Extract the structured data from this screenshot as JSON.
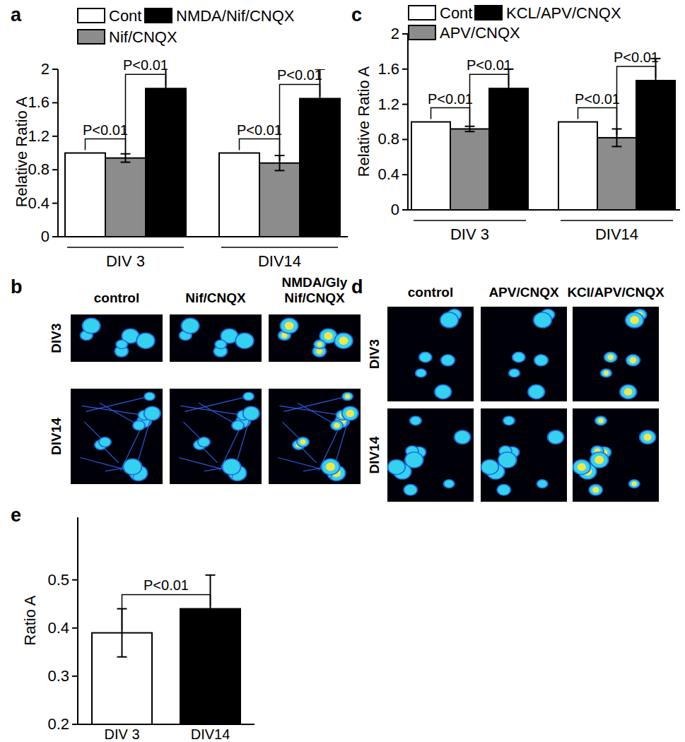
{
  "chart_data": [
    {
      "type": "bar",
      "title": "a",
      "y_label": "Relative Ratio A",
      "categories": [
        "DIV 3",
        "DIV14"
      ],
      "series": [
        {
          "name": "Cont",
          "color": "#ffffff",
          "values": [
            1,
            1
          ]
        },
        {
          "name": "Nif/CNQX",
          "color": "#8c8c8c",
          "values": [
            0.94,
            0.88
          ],
          "errors": [
            0.05,
            0.09
          ]
        },
        {
          "name": "NMDA/Nif/CNQX",
          "color": "#000000",
          "values": [
            1.77,
            1.65
          ],
          "errors": [
            0.26,
            0.35
          ]
        }
      ],
      "ylim": [
        0,
        2
      ],
      "yticks": [
        0,
        0.4,
        0.8,
        1.2,
        1.6,
        2
      ],
      "legend": "top",
      "annotations": [
        {
          "text": "P<0.01",
          "category": "DIV 3",
          "between": [
            "Cont",
            "Nif/CNQX"
          ]
        },
        {
          "text": "P<0.01",
          "category": "DIV 3",
          "between": [
            "Nif/CNQX",
            "NMDA/Nif/CNQX"
          ]
        },
        {
          "text": "P<0.01",
          "category": "DIV14",
          "between": [
            "Cont",
            "Nif/CNQX"
          ]
        },
        {
          "text": "P<0.01",
          "category": "DIV14",
          "between": [
            "Nif/CNQX",
            "NMDA/Nif/CNQX"
          ]
        }
      ]
    },
    {
      "type": "bar",
      "title": "c",
      "y_label": "Relative Ratio A",
      "categories": [
        "DIV 3",
        "DIV14"
      ],
      "series": [
        {
          "name": "Cont",
          "color": "#ffffff",
          "values": [
            1,
            1
          ]
        },
        {
          "name": "APV/CNQX",
          "color": "#8c8c8c",
          "values": [
            0.92,
            0.82
          ],
          "errors": [
            0.03,
            0.1
          ]
        },
        {
          "name": "KCL/APV/CNQX",
          "color": "#000000",
          "values": [
            1.38,
            1.47
          ],
          "errors": [
            0.22,
            0.25
          ]
        }
      ],
      "ylim": [
        0,
        2
      ],
      "yticks": [
        0,
        0.4,
        0.8,
        1.2,
        1.6,
        2
      ],
      "legend": "top",
      "annotations": [
        {
          "text": "P<0.01",
          "category": "DIV 3",
          "between": [
            "Cont",
            "APV/CNQX"
          ]
        },
        {
          "text": "P<0.01",
          "category": "DIV 3",
          "between": [
            "APV/CNQX",
            "KCL/APV/CNQX"
          ]
        },
        {
          "text": "P<0.01",
          "category": "DIV14",
          "between": [
            "Cont",
            "APV/CNQX"
          ]
        },
        {
          "text": "P<0.01",
          "category": "DIV14",
          "between": [
            "APV/CNQX",
            "KCL/APV/CNQX"
          ]
        }
      ]
    },
    {
      "type": "bar",
      "title": "e",
      "y_label": "Ratio A",
      "categories": [
        "DIV 3",
        "DIV14"
      ],
      "values": [
        0.39,
        0.44
      ],
      "errors": [
        0.05,
        0.07
      ],
      "colors": [
        "#ffffff",
        "#000000"
      ],
      "ylim": [
        0.2,
        0.63
      ],
      "yticks": [
        0.2,
        0.3,
        0.4,
        0.5
      ],
      "annotations": [
        {
          "text": "P<0.01",
          "between": [
            "DIV 3",
            "DIV14"
          ]
        }
      ]
    }
  ],
  "image_panels": [
    {
      "title": "b",
      "columns": [
        "control",
        "Nif/CNQX",
        "NMDA/Gly\nNif/CNQX"
      ],
      "rows": [
        "DIV3",
        "DIV14"
      ]
    },
    {
      "title": "d",
      "columns": [
        "control",
        "APV/CNQX",
        "KCl/APV/CNQX"
      ],
      "rows": [
        "DIV3",
        "DIV14"
      ]
    }
  ]
}
